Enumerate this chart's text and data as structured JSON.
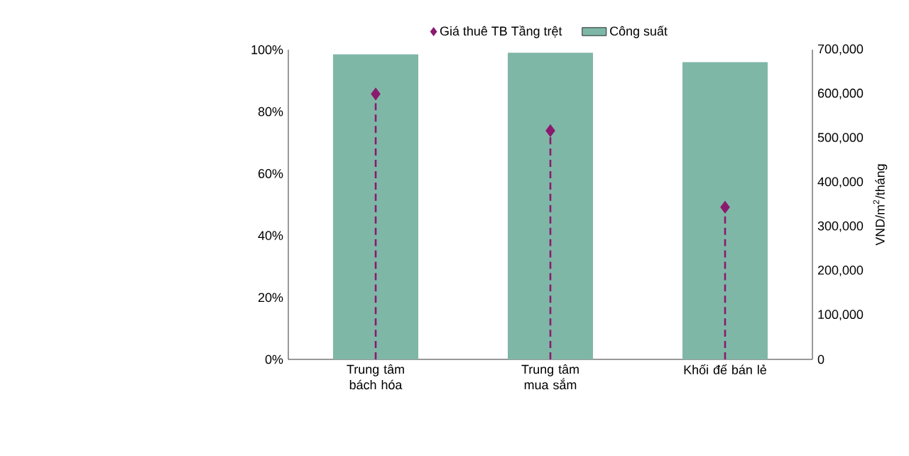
{
  "chart_data": {
    "type": "bar",
    "categories": [
      "Trung tâm bách hóa",
      "Trung tâm mua sắm",
      "Khối đế bán lẻ"
    ],
    "series": [
      {
        "name": "Công suất",
        "color": "#7fb7a7",
        "values": [
          98.5,
          99,
          96
        ]
      },
      {
        "name": "Giá thuê TB Tầng trệt",
        "type": "lollipop",
        "axis": "y2",
        "color": "#8b1a6e",
        "marker": "diamond",
        "line_style": "dashed",
        "values": [
          600000,
          517000,
          344000
        ]
      }
    ],
    "ylim": [
      0,
      100
    ],
    "yticks": [
      {
        "value": 0,
        "label": "0%"
      },
      {
        "value": 20,
        "label": "20%"
      },
      {
        "value": 40,
        "label": "40%"
      },
      {
        "value": 60,
        "label": "60%"
      },
      {
        "value": 80,
        "label": "80%"
      },
      {
        "value": 100,
        "label": "100%"
      }
    ],
    "y2lim": [
      0,
      700000
    ],
    "y2ticks": [
      0,
      {
        "value": 100000,
        "label": "100,000"
      },
      {
        "value": 200000,
        "label": "200,000"
      },
      {
        "value": 300000,
        "label": "300,000"
      },
      {
        "value": 400000,
        "label": "400,000"
      },
      {
        "value": 500000,
        "label": "500,000"
      },
      {
        "value": 600000,
        "label": "600,000"
      },
      {
        "value": 700000,
        "label": "700,000"
      }
    ],
    "y2label": "VND/m$^{2}$/tháng",
    "legend": "top"
  }
}
